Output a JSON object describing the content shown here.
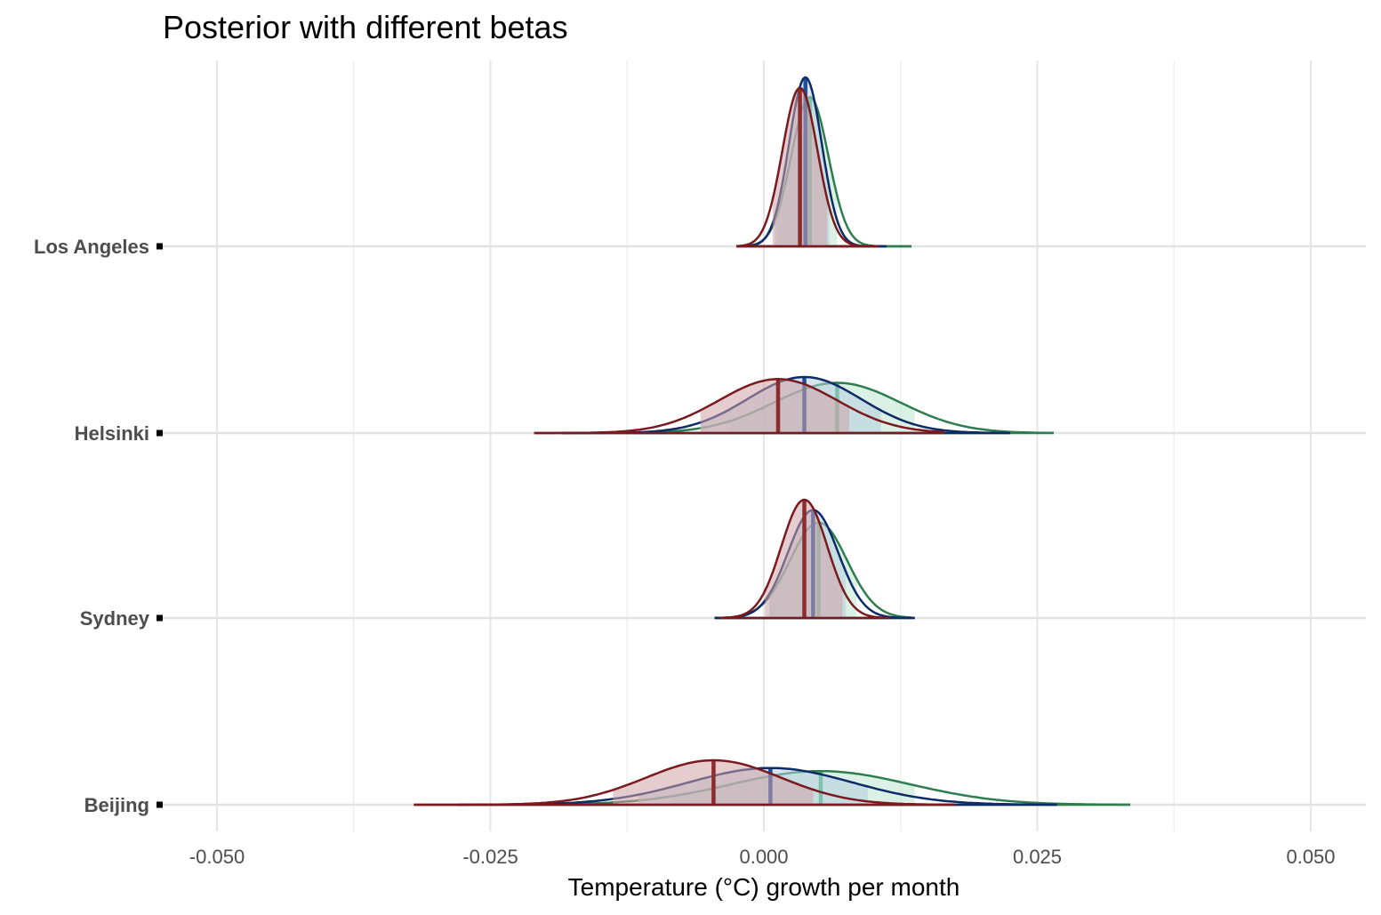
{
  "chart_data": {
    "type": "area",
    "subtype": "ridgeline-density",
    "title": "Posterior with different betas",
    "xlabel": "Temperature (°C) growth per month",
    "ylabel": "",
    "xlim": [
      -0.05,
      0.05
    ],
    "x_ticks": [
      "-0.050",
      "-0.025",
      "0.000",
      "0.025",
      "0.050"
    ],
    "x_tick_values": [
      -0.05,
      -0.025,
      0,
      0.025,
      0.05
    ],
    "grid": true,
    "legend": "none",
    "categories": [
      "Beijing",
      "Sydney",
      "Helsinki",
      "Los Angeles"
    ],
    "series": [
      {
        "color_line": "#2e7d4f",
        "color_fill": "#bfe6cf",
        "color_median": "#3cb371",
        "values": [
          {
            "city": "Beijing",
            "median": 0.0052,
            "sd": 0.0082,
            "ci": [
              -0.0086,
              0.0138
            ],
            "range": [
              -0.018,
              0.0335
            ]
          },
          {
            "city": "Sydney",
            "median": 0.005,
            "sd": 0.0026,
            "ci": [
              0.0005,
              0.0085
            ],
            "range": [
              -0.0045,
              0.0135
            ]
          },
          {
            "city": "Helsinki",
            "median": 0.0067,
            "sd": 0.0058,
            "ci": [
              -0.0032,
              0.0138
            ],
            "range": [
              -0.012,
              0.0265
            ]
          },
          {
            "city": "Los Angeles",
            "median": 0.0042,
            "sd": 0.0017,
            "ci": [
              0.0012,
              0.0067
            ],
            "range": [
              -0.0025,
              0.0135
            ]
          }
        ]
      },
      {
        "color_line": "#0d2b66",
        "color_fill": "#b5cde0",
        "color_median": "#1c4f9c",
        "values": [
          {
            "city": "Beijing",
            "median": 0.0006,
            "sd": 0.0075,
            "ci": [
              -0.0115,
              0.0095
            ],
            "range": [
              -0.028,
              0.0268
            ]
          },
          {
            "city": "Sydney",
            "median": 0.0045,
            "sd": 0.0023,
            "ci": [
              0.0005,
              0.0075
            ],
            "range": [
              -0.0045,
              0.0138
            ]
          },
          {
            "city": "Helsinki",
            "median": 0.0037,
            "sd": 0.0052,
            "ci": [
              -0.0058,
              0.0107
            ],
            "range": [
              -0.0185,
              0.0225
            ]
          },
          {
            "city": "Los Angeles",
            "median": 0.0038,
            "sd": 0.0015,
            "ci": [
              0.001,
              0.006
            ],
            "range": [
              -0.0025,
              0.0112
            ]
          }
        ]
      },
      {
        "color_line": "#7a1a1e",
        "color_fill": "#cfa2a6",
        "color_median": "#8b2c2f",
        "values": [
          {
            "city": "Beijing",
            "median": -0.0046,
            "sd": 0.0062,
            "ci": [
              -0.0138,
              0.0045
            ],
            "range": [
              -0.032,
              0.0175
            ]
          },
          {
            "city": "Sydney",
            "median": 0.0037,
            "sd": 0.0021,
            "ci": [
              0.0001,
              0.0072
            ],
            "range": [
              -0.004,
              0.0115
            ]
          },
          {
            "city": "Helsinki",
            "median": 0.0013,
            "sd": 0.0054,
            "ci": [
              -0.0058,
              0.0078
            ],
            "range": [
              -0.021,
              0.0165
            ]
          },
          {
            "city": "Los Angeles",
            "median": 0.0033,
            "sd": 0.0016,
            "ci": [
              0.0008,
              0.0058
            ],
            "range": [
              -0.0025,
              0.0105
            ]
          }
        ]
      }
    ]
  }
}
